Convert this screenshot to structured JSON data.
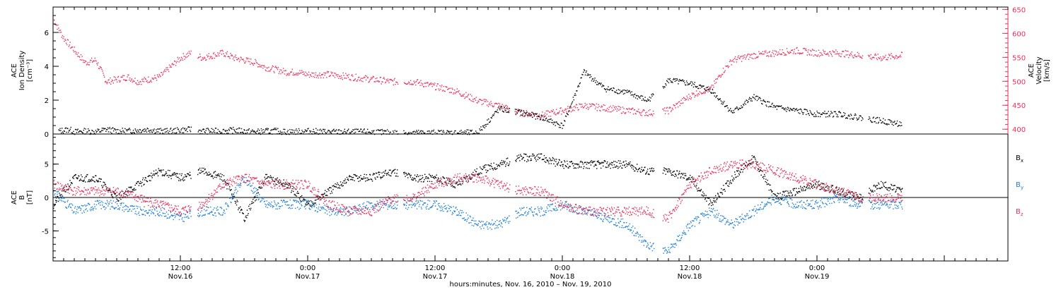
{
  "chart_data": [
    {
      "type": "scatter",
      "panel": "top",
      "ylabel_left": [
        "ACE",
        "Ion Density",
        "[cm⁻³]"
      ],
      "ylabel_right": [
        "ACE",
        "Velocity",
        "[km/s]"
      ],
      "ylim_left": [
        0,
        7.5
      ],
      "yticks_left": [
        "0",
        "2",
        "4",
        "6"
      ],
      "ylim_right": [
        390,
        655
      ],
      "yticks_right": [
        "400",
        "450",
        "500",
        "550",
        "600",
        "650"
      ],
      "series": [
        {
          "name": "Ion Density",
          "axis": "left",
          "color": "#000000",
          "points_hours": [
            0.5,
            1,
            1.5,
            2,
            3,
            4,
            5,
            6,
            7,
            8,
            9,
            10,
            11,
            12,
            13,
            14,
            15,
            16,
            17,
            18,
            19,
            20,
            21,
            22,
            24,
            26,
            28,
            30,
            32,
            34,
            36,
            38,
            40,
            42,
            44,
            46,
            48,
            50,
            52,
            54,
            56,
            58,
            60,
            62,
            64,
            66,
            68,
            70,
            72,
            74,
            76,
            78,
            80
          ],
          "values": [
            0.2,
            0.25,
            0.3,
            0.15,
            0.2,
            0.15,
            0.3,
            0.2,
            0.2,
            0.25,
            0.3,
            0.2,
            0.2,
            0.25,
            0.3,
            0.2,
            0.2,
            0.2,
            0.25,
            0.2,
            0.15,
            0.2,
            0.2,
            0.15,
            0.2,
            0.15,
            0.15,
            0.15,
            0.1,
            0.1,
            0.1,
            0.1,
            0.1,
            1.5,
            1.3,
            1.0,
            0.5,
            3.7,
            2.7,
            2.5,
            2.0,
            3.2,
            3.0,
            2.6,
            1.3,
            2.2,
            1.6,
            1.4,
            1.2,
            1.2,
            1.0,
            0.8,
            0.6
          ]
        },
        {
          "name": "Velocity",
          "axis": "right",
          "color": "#e8305a",
          "points_hours": [
            0,
            1,
            2,
            3,
            4,
            5,
            6,
            7,
            8,
            9,
            10,
            11,
            12,
            13,
            14,
            15,
            16,
            17,
            18,
            19,
            20,
            21,
            22,
            23,
            24,
            26,
            28,
            30,
            32,
            34,
            36,
            38,
            40,
            42,
            44,
            46,
            48,
            50,
            52,
            54,
            56,
            58,
            60,
            61,
            62,
            63,
            64,
            66,
            68,
            70,
            72,
            74,
            76,
            78,
            80
          ],
          "values": [
            630,
            590,
            565,
            540,
            545,
            500,
            505,
            510,
            500,
            505,
            510,
            530,
            550,
            560,
            550,
            555,
            560,
            550,
            545,
            540,
            530,
            525,
            520,
            520,
            515,
            515,
            510,
            505,
            500,
            500,
            490,
            480,
            460,
            450,
            435,
            430,
            440,
            450,
            445,
            440,
            435,
            440,
            470,
            480,
            485,
            520,
            545,
            555,
            560,
            565,
            560,
            560,
            555,
            550,
            555
          ]
        }
      ]
    },
    {
      "type": "scatter",
      "panel": "bottom",
      "ylabel_left": [
        "ACE",
        "B",
        "[nT]"
      ],
      "ylim": [
        -9.5,
        9.5
      ],
      "yticks": [
        "-5",
        "0",
        "5"
      ],
      "series": [
        {
          "name": "Bx",
          "color": "#000000",
          "points_hours": [
            0,
            2,
            4,
            6,
            8,
            10,
            12,
            14,
            16,
            18,
            20,
            22,
            24,
            26,
            28,
            30,
            32,
            34,
            36,
            38,
            40,
            42,
            44,
            46,
            48,
            50,
            52,
            54,
            56,
            58,
            60,
            62,
            64,
            66,
            68,
            70,
            72,
            74,
            76,
            78,
            80
          ],
          "values": [
            -1,
            3,
            3,
            0,
            2,
            4,
            3,
            4,
            3,
            -3,
            3,
            2,
            -1,
            1,
            3,
            3,
            4,
            3,
            3,
            2,
            4,
            5,
            6,
            6,
            5,
            5,
            5,
            5,
            4,
            4,
            3,
            -1,
            3,
            6,
            0,
            1,
            2,
            1,
            0,
            2,
            1
          ]
        },
        {
          "name": "By",
          "color": "#1e7fd6",
          "points_hours": [
            0,
            2,
            4,
            6,
            8,
            10,
            12,
            14,
            16,
            18,
            20,
            22,
            24,
            26,
            28,
            30,
            32,
            34,
            36,
            38,
            40,
            42,
            44,
            46,
            48,
            50,
            52,
            54,
            56,
            58,
            60,
            62,
            64,
            66,
            68,
            70,
            72,
            74,
            76,
            78,
            80
          ],
          "values": [
            1,
            -2,
            -1,
            -1,
            -2,
            -2,
            -3,
            -2,
            -2,
            3,
            -1,
            -1,
            -1,
            -2,
            -2,
            -1,
            -1,
            -1,
            -1,
            -2,
            -4,
            -4,
            -2,
            -2,
            -1,
            -2,
            -3,
            -4,
            -7,
            -8,
            -4,
            -2,
            -4,
            -2,
            0,
            -1,
            -1,
            0,
            -1,
            -1,
            -1
          ]
        },
        {
          "name": "Bz",
          "color": "#e8305a",
          "points_hours": [
            0,
            2,
            4,
            6,
            8,
            10,
            12,
            14,
            16,
            18,
            20,
            22,
            24,
            26,
            28,
            30,
            32,
            34,
            36,
            38,
            40,
            42,
            44,
            46,
            48,
            50,
            52,
            54,
            56,
            58,
            60,
            62,
            64,
            66,
            68,
            70,
            72,
            74,
            76,
            78,
            80
          ],
          "values": [
            2,
            1,
            1,
            1,
            0,
            -1,
            -2,
            -1,
            2,
            3,
            2,
            2,
            2,
            -1,
            -2,
            -2,
            0,
            0,
            2,
            3,
            3,
            2,
            1,
            1,
            -1,
            -2,
            -2,
            -2,
            -2,
            -3,
            2,
            4,
            5,
            5,
            4,
            3,
            2,
            1,
            0,
            0,
            0
          ]
        }
      ]
    }
  ],
  "x_axis": {
    "ticks": [
      {
        "time": "12:00",
        "date": "Nov.16"
      },
      {
        "time": "0:00",
        "date": "Nov.17"
      },
      {
        "time": "12:00",
        "date": "Nov.17"
      },
      {
        "time": "0:00",
        "date": "Nov.18"
      },
      {
        "time": "12:00",
        "date": "Nov.18"
      },
      {
        "time": "0:00",
        "date": "Nov.19"
      }
    ],
    "title": "hours:minutes, Nov. 16, 2010 – Nov. 19, 2010"
  },
  "legend": [
    "Bx",
    "By",
    "Bz"
  ]
}
